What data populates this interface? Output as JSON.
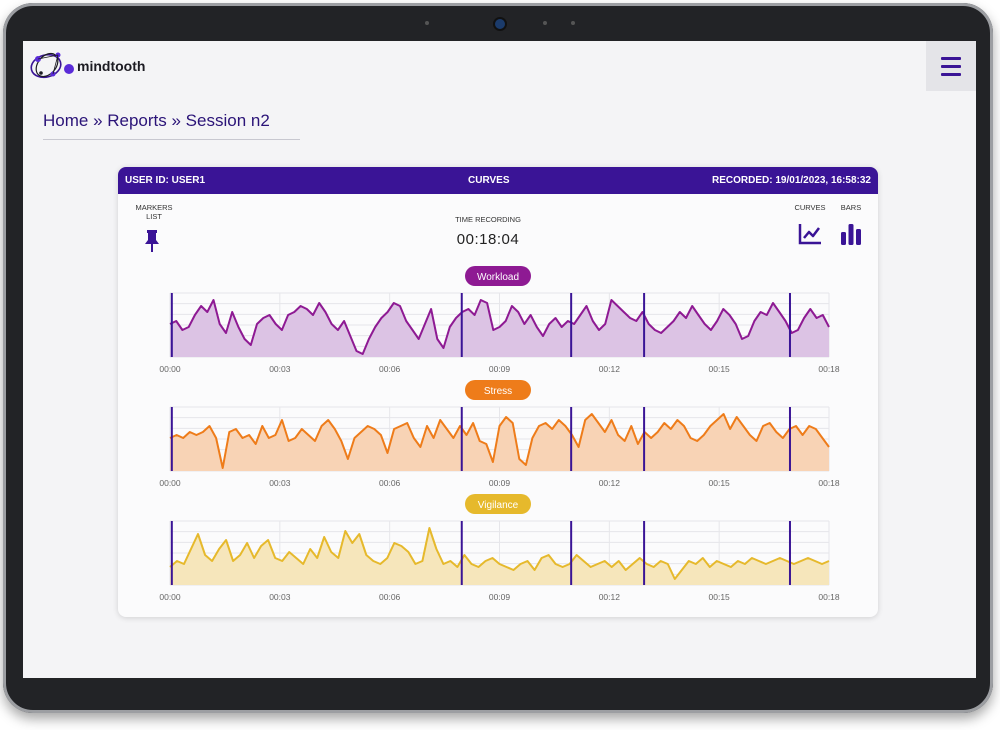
{
  "app": {
    "name": "mindtooth"
  },
  "breadcrumb": {
    "text": "Home » Reports  » Session n2"
  },
  "card": {
    "user": "USER ID: USER1",
    "title": "CURVES",
    "recorded": "RECORDED: 19/01/2023, 16:58:32",
    "markers_label": "MARKERS\nLIST",
    "time_label": "TIME RECORDING",
    "time_value": "00:18:04",
    "curves_label": "CURVES",
    "bars_label": "BARS"
  },
  "colors": {
    "brand": "#3a1496",
    "workload": "#8e1a93",
    "stress": "#ee7c1a",
    "vigilance": "#e6b92c",
    "marker": "#3a1496"
  },
  "icons": [
    "menu-icon",
    "pin-icon",
    "line-chart-icon",
    "bar-chart-icon"
  ],
  "chart_data": [
    {
      "type": "area",
      "title": "Workload",
      "x_tick_labels": [
        "00:00",
        "00:03",
        "00:06",
        "00:09",
        "00:12",
        "00:15",
        "00:18"
      ],
      "xlim": [
        0,
        18.07
      ],
      "ylim": [
        0,
        1
      ],
      "grid": true,
      "markers_x": [
        0.05,
        8.0,
        11.0,
        13.0,
        17.0
      ],
      "series": [
        {
          "values": [
            0.55,
            0.6,
            0.45,
            0.5,
            0.7,
            0.85,
            0.75,
            0.95,
            0.55,
            0.4,
            0.75,
            0.5,
            0.3,
            0.2,
            0.55,
            0.65,
            0.7,
            0.55,
            0.45,
            0.7,
            0.75,
            0.85,
            0.8,
            0.7,
            0.9,
            0.75,
            0.55,
            0.45,
            0.6,
            0.35,
            0.1,
            0.05,
            0.3,
            0.5,
            0.65,
            0.75,
            0.9,
            0.85,
            0.6,
            0.45,
            0.3,
            0.55,
            0.8,
            0.3,
            0.15,
            0.5,
            0.65,
            0.75,
            0.8,
            0.7,
            0.95,
            0.9,
            0.45,
            0.5,
            0.6,
            0.85,
            0.75,
            0.55,
            0.7,
            0.5,
            0.35,
            0.55,
            0.65,
            0.5,
            0.6,
            0.55,
            0.7,
            0.85,
            0.6,
            0.45,
            0.55,
            0.95,
            0.85,
            0.75,
            0.65,
            0.6,
            0.75,
            0.55,
            0.45,
            0.4,
            0.5,
            0.6,
            0.75,
            0.65,
            0.85,
            0.7,
            0.55,
            0.45,
            0.6,
            0.8,
            0.7,
            0.55,
            0.3,
            0.35,
            0.6,
            0.75,
            0.7,
            0.9,
            0.75,
            0.6,
            0.4,
            0.45,
            0.65,
            0.8,
            0.65,
            0.7,
            0.5
          ]
        }
      ]
    },
    {
      "type": "area",
      "title": "Stress",
      "x_tick_labels": [
        "00:00",
        "00:03",
        "00:06",
        "00:09",
        "00:12",
        "00:15",
        "00:18"
      ],
      "xlim": [
        0,
        18.07
      ],
      "ylim": [
        0,
        1
      ],
      "grid": true,
      "markers_x": [
        0.05,
        8.0,
        11.0,
        13.0,
        17.0
      ],
      "series": [
        {
          "values": [
            0.55,
            0.6,
            0.55,
            0.65,
            0.6,
            0.65,
            0.75,
            0.55,
            0.05,
            0.65,
            0.7,
            0.55,
            0.6,
            0.45,
            0.75,
            0.55,
            0.6,
            0.85,
            0.5,
            0.55,
            0.7,
            0.6,
            0.5,
            0.75,
            0.85,
            0.7,
            0.5,
            0.2,
            0.55,
            0.65,
            0.75,
            0.7,
            0.6,
            0.3,
            0.7,
            0.75,
            0.8,
            0.55,
            0.4,
            0.75,
            0.55,
            0.85,
            0.7,
            0.55,
            0.75,
            0.6,
            0.8,
            0.5,
            0.45,
            0.15,
            0.75,
            0.9,
            0.8,
            0.2,
            0.1,
            0.55,
            0.75,
            0.8,
            0.7,
            0.85,
            0.75,
            0.6,
            0.4,
            0.85,
            0.95,
            0.8,
            0.65,
            0.85,
            0.6,
            0.5,
            0.75,
            0.45,
            0.65,
            0.55,
            0.65,
            0.8,
            0.7,
            0.85,
            0.75,
            0.55,
            0.5,
            0.6,
            0.75,
            0.85,
            0.95,
            0.7,
            0.9,
            0.75,
            0.6,
            0.5,
            0.75,
            0.8,
            0.65,
            0.55,
            0.7,
            0.75,
            0.6,
            0.75,
            0.7,
            0.55,
            0.4
          ]
        }
      ]
    },
    {
      "type": "area",
      "title": "Vigilance",
      "x_tick_labels": [
        "00:00",
        "00:03",
        "00:06",
        "00:09",
        "00:12",
        "00:15",
        "00:18"
      ],
      "xlim": [
        0,
        18.07
      ],
      "ylim": [
        0,
        1
      ],
      "grid": true,
      "markers_x": [
        0.05,
        8.0,
        11.0,
        13.0,
        17.0
      ],
      "series": [
        {
          "values": [
            0.3,
            0.4,
            0.35,
            0.6,
            0.85,
            0.5,
            0.4,
            0.6,
            0.75,
            0.4,
            0.5,
            0.7,
            0.45,
            0.65,
            0.75,
            0.45,
            0.4,
            0.55,
            0.45,
            0.35,
            0.6,
            0.45,
            0.8,
            0.55,
            0.45,
            0.9,
            0.7,
            0.85,
            0.5,
            0.4,
            0.35,
            0.45,
            0.7,
            0.65,
            0.55,
            0.35,
            0.4,
            0.95,
            0.6,
            0.35,
            0.4,
            0.3,
            0.5,
            0.35,
            0.3,
            0.4,
            0.45,
            0.35,
            0.3,
            0.25,
            0.35,
            0.4,
            0.25,
            0.45,
            0.5,
            0.35,
            0.3,
            0.35,
            0.5,
            0.4,
            0.3,
            0.35,
            0.4,
            0.3,
            0.4,
            0.25,
            0.35,
            0.45,
            0.35,
            0.3,
            0.4,
            0.35,
            0.1,
            0.25,
            0.4,
            0.35,
            0.45,
            0.3,
            0.4,
            0.35,
            0.3,
            0.4,
            0.35,
            0.45,
            0.4,
            0.35,
            0.4,
            0.45,
            0.4,
            0.35,
            0.4,
            0.45,
            0.4,
            0.35,
            0.4
          ]
        }
      ]
    }
  ]
}
